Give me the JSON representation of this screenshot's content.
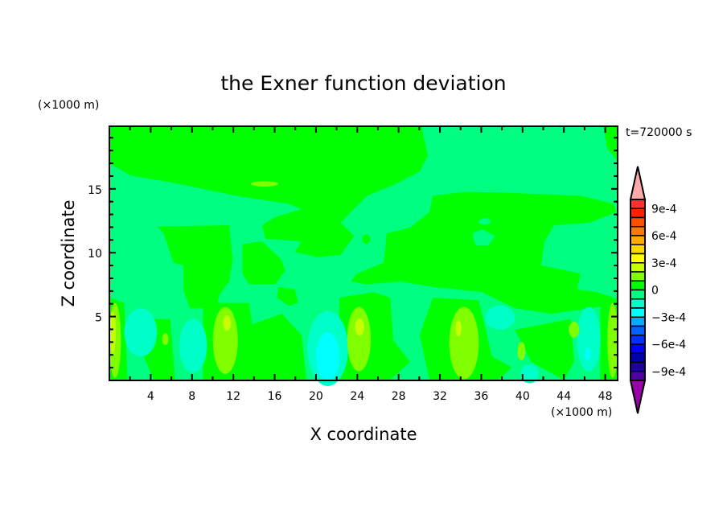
{
  "chart_data": {
    "type": "contour",
    "title": "the Exner function deviation",
    "xlabel": "X coordinate",
    "ylabel": "Z coordinate",
    "x_unit_label": "(×1000 m)",
    "y_unit_label": "(×1000 m)",
    "time_label": "t=720000 s",
    "xlim": [
      0,
      49.2
    ],
    "ylim": [
      0,
      19.9
    ],
    "x_ticks": [
      4,
      8,
      12,
      16,
      20,
      24,
      28,
      32,
      36,
      40,
      44,
      48
    ],
    "x_minor_step": 2,
    "y_ticks": [
      5,
      10,
      15
    ],
    "y_minor_step": 1,
    "grid": false,
    "colorbar": {
      "placement": "right",
      "levels": [
        0.001,
        0.0009,
        0.0008,
        0.0007,
        0.0006,
        0.0005,
        0.0004,
        0.0003,
        0.0002,
        0.0001,
        0,
        -0.0001,
        -0.0002,
        -0.0003,
        -0.0004,
        -0.0005,
        -0.0006,
        -0.0007,
        -0.0008,
        -0.0009,
        -0.001
      ],
      "colors": [
        "#ff3030",
        "#ff2000",
        "#ff5000",
        "#ff7800",
        "#ffaa00",
        "#ffd700",
        "#ffff00",
        "#c8ff00",
        "#80ff00",
        "#00ff00",
        "#00ff80",
        "#00ffc8",
        "#00ffff",
        "#00aaff",
        "#0064ff",
        "#0032ff",
        "#0000ff",
        "#0000aa",
        "#2000a0",
        "#5000a0"
      ],
      "over_color": "#ffaaaa",
      "under_color": "#9900aa",
      "tick_labels": [
        {
          "label": "9e-4",
          "level_index": 1
        },
        {
          "label": "6e-4",
          "level_index": 4
        },
        {
          "label": "3e-4",
          "level_index": 7
        },
        {
          "label": "0",
          "level_index": 10
        },
        {
          "label": "−3e-4",
          "level_index": 13
        },
        {
          "label": "−6e-4",
          "level_index": 16
        },
        {
          "label": "−9e-4",
          "level_index": 19
        }
      ]
    },
    "field_range_colors": {
      "dominant": [
        "#00ff80",
        "#00ff00"
      ],
      "positive_cells": [
        "#80ff00",
        "#c8ff00"
      ],
      "negative_cells": [
        "#00ffc8",
        "#00ffff"
      ]
    }
  }
}
